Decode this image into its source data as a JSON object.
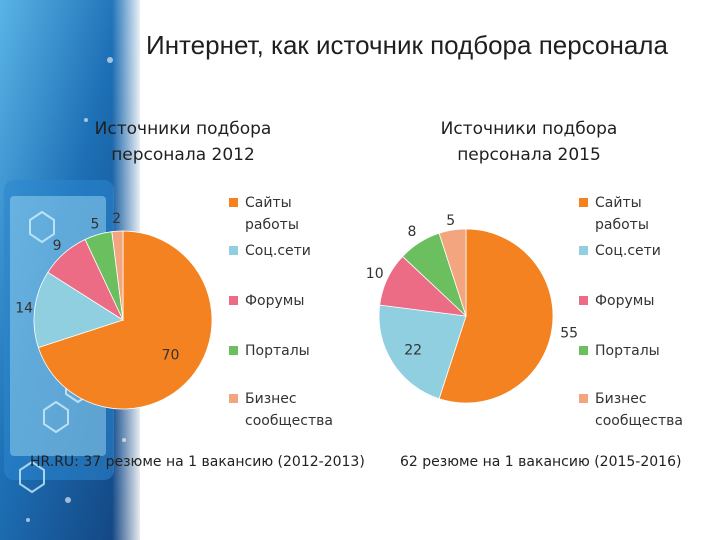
{
  "title": "Интернет, как источник подбора персонала",
  "colors": {
    "background": "#ffffff",
    "decor": "#1d5c9c",
    "decor_light": "#8fd6f2"
  },
  "chart_data": [
    {
      "type": "pie",
      "title": "Источники подбора персонала 2012",
      "categories": [
        "Сайты работы",
        "Соц.сети",
        "Форумы",
        "Порталы",
        "Бизнес сообщества"
      ],
      "values": [
        70,
        14,
        9,
        5,
        2
      ],
      "colors": [
        "#f58220",
        "#8fcfe0",
        "#ec6b85",
        "#6cbf5f",
        "#f3a57f"
      ],
      "legend_position": "right",
      "note": "HR.RU: 37 резюме на 1 вакансию (2012-2013)"
    },
    {
      "type": "pie",
      "title": "Источники подбора персонала 2015",
      "categories": [
        "Сайты работы",
        "Соц.сети",
        "Форумы",
        "Порталы",
        "Бизнес сообщества"
      ],
      "values": [
        55,
        22,
        10,
        8,
        5
      ],
      "colors": [
        "#f58220",
        "#8fcfe0",
        "#ec6b85",
        "#6cbf5f",
        "#f3a57f"
      ],
      "legend_position": "right",
      "note": "62 резюме на 1 вакансию (2015-2016)"
    }
  ]
}
